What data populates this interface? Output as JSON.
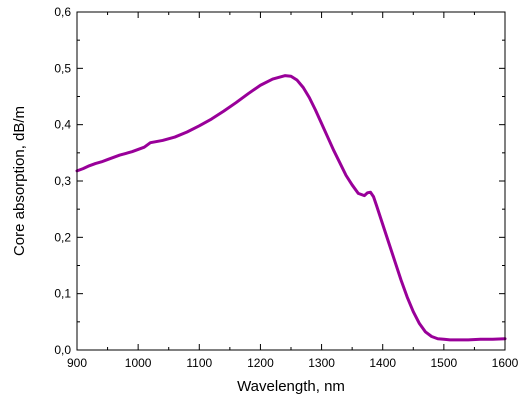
{
  "chart_data": {
    "type": "line",
    "title": "",
    "xlabel": "Wavelength, nm",
    "ylabel": "Core absorption, dB/m",
    "xlim": [
      900,
      1600
    ],
    "ylim": [
      0.0,
      0.6
    ],
    "x_ticks": [
      900,
      1000,
      1100,
      1200,
      1300,
      1400,
      1500,
      1600
    ],
    "x_tick_labels": [
      "900",
      "1000",
      "1100",
      "1200",
      "1300",
      "1400",
      "1500",
      "1600"
    ],
    "y_ticks": [
      0.0,
      0.1,
      0.2,
      0.3,
      0.4,
      0.5,
      0.6
    ],
    "y_tick_labels": [
      "0,0",
      "0,1",
      "0,2",
      "0,3",
      "0,4",
      "0,5",
      "0,6"
    ],
    "grid": false,
    "legend": "none",
    "line_color": "#990099",
    "series": [
      {
        "x": [
          900,
          910,
          920,
          930,
          940,
          950,
          960,
          970,
          980,
          990,
          1000,
          1010,
          1020,
          1040,
          1060,
          1080,
          1100,
          1120,
          1140,
          1160,
          1180,
          1200,
          1220,
          1240,
          1250,
          1260,
          1270,
          1280,
          1290,
          1300,
          1310,
          1320,
          1330,
          1340,
          1350,
          1360,
          1370,
          1375,
          1380,
          1385,
          1390,
          1400,
          1410,
          1420,
          1430,
          1440,
          1450,
          1460,
          1470,
          1480,
          1490,
          1500,
          1510,
          1520,
          1540,
          1560,
          1580,
          1600
        ],
        "y": [
          0.318,
          0.322,
          0.327,
          0.331,
          0.334,
          0.338,
          0.342,
          0.346,
          0.349,
          0.352,
          0.356,
          0.36,
          0.368,
          0.372,
          0.378,
          0.387,
          0.398,
          0.41,
          0.424,
          0.439,
          0.455,
          0.47,
          0.481,
          0.487,
          0.486,
          0.479,
          0.466,
          0.448,
          0.426,
          0.402,
          0.378,
          0.354,
          0.332,
          0.31,
          0.293,
          0.278,
          0.274,
          0.279,
          0.28,
          0.272,
          0.256,
          0.223,
          0.19,
          0.157,
          0.124,
          0.094,
          0.068,
          0.047,
          0.032,
          0.024,
          0.02,
          0.019,
          0.018,
          0.018,
          0.018,
          0.019,
          0.019,
          0.02
        ]
      }
    ]
  }
}
